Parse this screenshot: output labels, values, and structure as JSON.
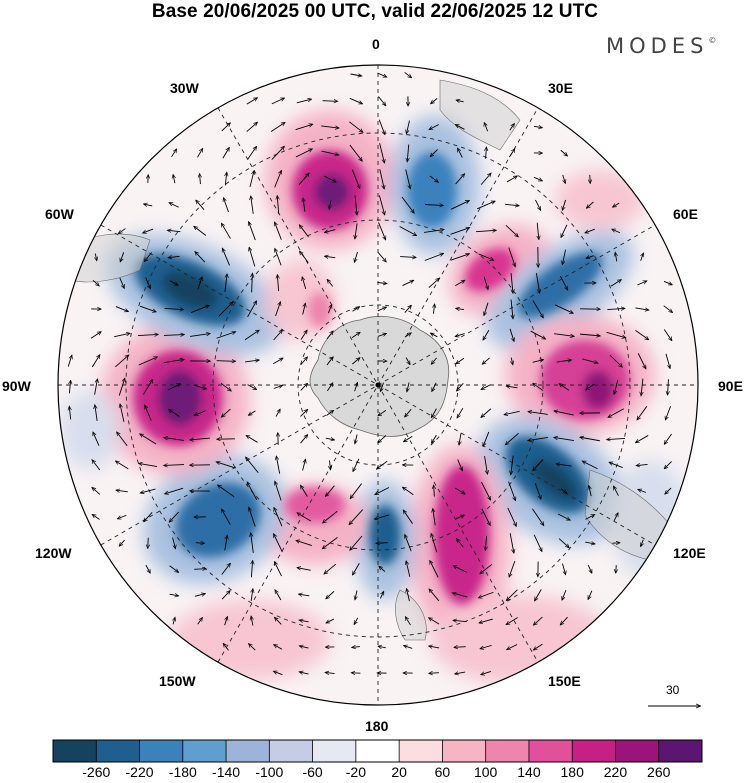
{
  "header": {
    "title": "Base 20/06/2025 00 UTC, valid 22/06/2025 12 UTC",
    "brand": "MODES",
    "brand_mark": "©"
  },
  "map": {
    "projection": "polar stereographic (south pole centered)",
    "longitude_labels": {
      "l0": "0",
      "l30e": "30E",
      "l60e": "60E",
      "l90e": "90E",
      "l120e": "120E",
      "l150e": "150E",
      "l180": "180",
      "l150w": "150W",
      "l120w": "120W",
      "l90w": "90W",
      "l60w": "60W",
      "l30w": "30W"
    },
    "reference_vector_label": "30",
    "colors": {
      "neg_strong": "#15425e",
      "neg": "#2f6ea6",
      "neg_light": "#c9d3e6",
      "pos_light": "#f6c5cf",
      "pos": "#e2509b",
      "pos_strong": "#5a1670",
      "land": "#d4d4d4"
    }
  },
  "colorbar": {
    "colors": [
      "#15425e",
      "#1f5f8f",
      "#3b82bd",
      "#5e9fcf",
      "#9eb3d9",
      "#c5cde6",
      "#e6e8f2",
      "#ffffff",
      "#fbdde2",
      "#f6b4c4",
      "#ee85ac",
      "#e2509b",
      "#c81f86",
      "#9a1479",
      "#5a1670"
    ],
    "tick_labels": [
      "-260",
      "-220",
      "-180",
      "-140",
      "-100",
      "-60",
      "-20",
      "20",
      "60",
      "100",
      "140",
      "180",
      "220",
      "260"
    ]
  }
}
